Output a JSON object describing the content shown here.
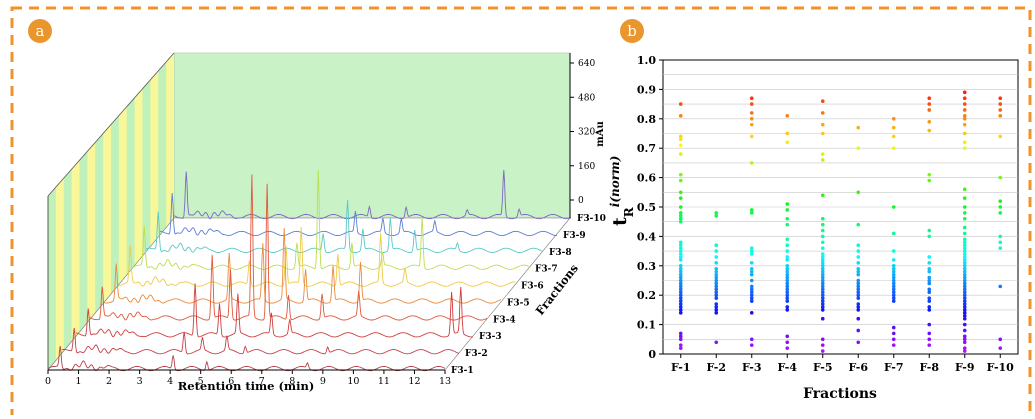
{
  "panels": {
    "a": {
      "badge": "a"
    },
    "b": {
      "badge": "b"
    }
  },
  "colors": {
    "frame": "#f0932a",
    "badge": "#e9962d",
    "wall_green": "#c9f2c6",
    "floor_yellow": "#f8f79a"
  },
  "chart_data": [
    {
      "type": "line",
      "style": "3d-stacked-chromatograms",
      "xlabel": "Retention time (min)",
      "ylabel": "mAu",
      "zlabel": "Fractions",
      "xlim": [
        0,
        13
      ],
      "ylim": [
        0,
        640
      ],
      "x_ticks": [
        "0",
        "1",
        "2",
        "3",
        "4",
        "5",
        "6",
        "7",
        "8",
        "9",
        "10",
        "11",
        "12",
        "13"
      ],
      "y_ticks": [
        "0",
        "160",
        "320",
        "480",
        "640"
      ],
      "series": [
        {
          "name": "F3-1",
          "color": "#b5434d",
          "peaks": [
            [
              0.4,
              60
            ],
            [
              4.1,
              40
            ],
            [
              5.2,
              25
            ],
            [
              8.5,
              15
            ]
          ]
        },
        {
          "name": "F3-2",
          "color": "#c5404a",
          "peaks": [
            [
              0.4,
              70
            ],
            [
              4.0,
              60
            ],
            [
              4.6,
              35
            ],
            [
              5.4,
              40
            ],
            [
              6.0,
              20
            ],
            [
              8.7,
              18
            ]
          ]
        },
        {
          "name": "F3-3",
          "color": "#d03d3d",
          "peaks": [
            [
              0.4,
              80
            ],
            [
              3.9,
              150
            ],
            [
              4.7,
              90
            ],
            [
              5.3,
              110
            ],
            [
              6.4,
              60
            ],
            [
              7.0,
              40
            ],
            [
              12.3,
              120
            ],
            [
              12.6,
              130
            ]
          ]
        },
        {
          "name": "F3-4",
          "color": "#e2573d",
          "peaks": [
            [
              0.4,
              90
            ],
            [
              4.0,
              180
            ],
            [
              4.6,
              140
            ],
            [
              5.3,
              400
            ],
            [
              5.8,
              380
            ],
            [
              6.5,
              70
            ],
            [
              7.6,
              70
            ],
            [
              8.8,
              70
            ]
          ]
        },
        {
          "name": "F3-5",
          "color": "#ea8a3c",
          "peaks": [
            [
              0.4,
              100
            ],
            [
              4.1,
              130
            ],
            [
              5.2,
              160
            ],
            [
              5.9,
              200
            ],
            [
              6.6,
              90
            ],
            [
              7.5,
              100
            ],
            [
              8.4,
              110
            ]
          ]
        },
        {
          "name": "F3-6",
          "color": "#eecb45",
          "peaks": [
            [
              0.4,
              100
            ],
            [
              4.3,
              70
            ],
            [
              5.5,
              110
            ],
            [
              6.0,
              160
            ],
            [
              7.2,
              90
            ],
            [
              8.6,
              140
            ],
            [
              9.4,
              40
            ]
          ]
        },
        {
          "name": "F3-7",
          "color": "#b9e04c",
          "peaks": [
            [
              0.4,
              110
            ],
            [
              5.4,
              70
            ],
            [
              6.1,
              280
            ],
            [
              7.2,
              70
            ],
            [
              8.2,
              40
            ],
            [
              9.5,
              140
            ]
          ]
        },
        {
          "name": "F3-8",
          "color": "#59c8ca",
          "peaks": [
            [
              0.4,
              110
            ],
            [
              5.8,
              50
            ],
            [
              6.6,
              140
            ],
            [
              7.1,
              60
            ],
            [
              8.0,
              90
            ],
            [
              8.8,
              60
            ],
            [
              10.2,
              20
            ]
          ]
        },
        {
          "name": "F3-9",
          "color": "#5b7fd6",
          "peaks": [
            [
              0.4,
              120
            ],
            [
              6.4,
              60
            ],
            [
              7.3,
              40
            ],
            [
              7.9,
              40
            ],
            [
              9.0,
              30
            ]
          ]
        },
        {
          "name": "F3-10",
          "color": "#7d66c3",
          "peaks": [
            [
              0.4,
              130
            ],
            [
              6.4,
              30
            ],
            [
              7.6,
              30
            ],
            [
              9.6,
              15
            ],
            [
              10.8,
              130
            ],
            [
              11.3,
              20
            ]
          ]
        }
      ]
    },
    {
      "type": "scatter",
      "xlabel": "Fractions",
      "ylabel": "t",
      "ylabel_sub": "R",
      "ylabel_sup": "i(norm)",
      "ylim": [
        0,
        1.0
      ],
      "y_ticks": [
        "0",
        "0.1",
        "0.2",
        "0.3",
        "0.4",
        "0.5",
        "0.6",
        "0.7",
        "0.8",
        "0.9",
        "1.0"
      ],
      "grid": true,
      "categories": [
        "F-1",
        "F-2",
        "F-3",
        "F-4",
        "F-5",
        "F-6",
        "F-7",
        "F-8",
        "F-9",
        "F-10"
      ],
      "color_scale": "rainbow by retention (violet low → red high)",
      "values": [
        [
          0.85,
          0.81,
          0.74,
          0.73,
          0.71,
          0.68,
          0.61,
          0.59,
          0.55,
          0.53,
          0.5,
          0.48,
          0.47,
          0.46,
          0.45,
          0.38,
          0.37,
          0.36,
          0.35,
          0.34,
          0.33,
          0.32,
          0.3,
          0.29,
          0.28,
          0.27,
          0.26,
          0.25,
          0.24,
          0.23,
          0.22,
          0.21,
          0.2,
          0.19,
          0.18,
          0.17,
          0.16,
          0.15,
          0.14,
          0.07,
          0.06,
          0.05,
          0.03,
          0.02
        ],
        [
          0.48,
          0.47,
          0.37,
          0.35,
          0.33,
          0.31,
          0.29,
          0.28,
          0.27,
          0.26,
          0.25,
          0.24,
          0.23,
          0.22,
          0.21,
          0.2,
          0.19,
          0.17,
          0.16,
          0.15,
          0.14,
          0.04
        ],
        [
          0.87,
          0.85,
          0.82,
          0.8,
          0.78,
          0.74,
          0.65,
          0.49,
          0.48,
          0.36,
          0.35,
          0.34,
          0.31,
          0.29,
          0.28,
          0.27,
          0.25,
          0.23,
          0.22,
          0.21,
          0.2,
          0.19,
          0.18,
          0.14,
          0.05,
          0.03
        ],
        [
          0.81,
          0.75,
          0.72,
          0.51,
          0.49,
          0.46,
          0.44,
          0.39,
          0.37,
          0.35,
          0.33,
          0.32,
          0.3,
          0.29,
          0.28,
          0.27,
          0.26,
          0.25,
          0.24,
          0.23,
          0.22,
          0.21,
          0.2,
          0.19,
          0.18,
          0.16,
          0.15,
          0.06,
          0.04,
          0.02
        ],
        [
          0.86,
          0.82,
          0.78,
          0.75,
          0.68,
          0.66,
          0.54,
          0.46,
          0.44,
          0.42,
          0.4,
          0.38,
          0.36,
          0.34,
          0.33,
          0.32,
          0.31,
          0.3,
          0.29,
          0.28,
          0.27,
          0.26,
          0.25,
          0.24,
          0.23,
          0.22,
          0.21,
          0.2,
          0.19,
          0.18,
          0.17,
          0.16,
          0.15,
          0.12,
          0.05,
          0.03,
          0.01
        ],
        [
          0.77,
          0.7,
          0.55,
          0.44,
          0.37,
          0.35,
          0.33,
          0.31,
          0.29,
          0.28,
          0.27,
          0.25,
          0.24,
          0.23,
          0.22,
          0.21,
          0.2,
          0.19,
          0.17,
          0.16,
          0.15,
          0.12,
          0.08,
          0.04
        ],
        [
          0.8,
          0.77,
          0.74,
          0.7,
          0.5,
          0.41,
          0.35,
          0.32,
          0.3,
          0.29,
          0.28,
          0.27,
          0.26,
          0.25,
          0.24,
          0.23,
          0.22,
          0.21,
          0.2,
          0.19,
          0.18,
          0.09,
          0.07,
          0.05,
          0.03
        ],
        [
          0.87,
          0.85,
          0.83,
          0.79,
          0.76,
          0.61,
          0.59,
          0.42,
          0.4,
          0.33,
          0.31,
          0.29,
          0.28,
          0.26,
          0.25,
          0.24,
          0.22,
          0.21,
          0.19,
          0.18,
          0.16,
          0.15,
          0.1,
          0.07,
          0.05,
          0.03
        ],
        [
          0.89,
          0.87,
          0.85,
          0.83,
          0.81,
          0.8,
          0.78,
          0.75,
          0.72,
          0.7,
          0.56,
          0.53,
          0.5,
          0.48,
          0.46,
          0.43,
          0.41,
          0.39,
          0.38,
          0.37,
          0.36,
          0.35,
          0.34,
          0.33,
          0.32,
          0.31,
          0.3,
          0.29,
          0.28,
          0.27,
          0.26,
          0.25,
          0.24,
          0.23,
          0.22,
          0.21,
          0.2,
          0.19,
          0.18,
          0.17,
          0.16,
          0.15,
          0.14,
          0.13,
          0.12,
          0.1,
          0.08,
          0.06,
          0.05,
          0.04,
          0.02,
          0.01
        ],
        [
          0.87,
          0.85,
          0.83,
          0.81,
          0.74,
          0.6,
          0.52,
          0.5,
          0.48,
          0.4,
          0.38,
          0.36,
          0.23,
          0.05,
          0.02
        ]
      ]
    }
  ]
}
